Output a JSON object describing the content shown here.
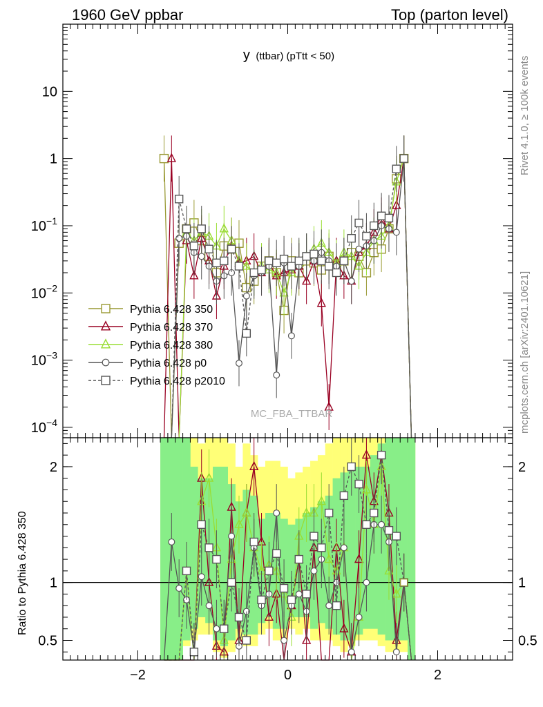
{
  "header": {
    "left": "1960 GeV ppbar",
    "right": "Top (parton level)"
  },
  "side_labels": {
    "rivet": "Rivet 4.1.0, ≥ 100k events",
    "mcplots": "mcplots.cern.ch [arXiv:2401.10621]"
  },
  "watermark": "MC_FBA_TTBAR",
  "chart_data": [
    {
      "id": "main",
      "type": "line",
      "title": "y (ttbar) (pTtt < 50)",
      "title_main": "y",
      "title_sub": "(ttbar)  (pTtt < 50)",
      "xlabel": "",
      "ylabel": "",
      "yscale": "log",
      "xlim": [
        -3.0,
        3.0
      ],
      "ylim": [
        7e-05,
        100
      ],
      "yticks": [
        {
          "value": 10,
          "label": "10"
        },
        {
          "value": 1,
          "label": "1"
        },
        {
          "value": 0.1,
          "base": "10",
          "exp": "−1"
        },
        {
          "value": 0.01,
          "base": "10",
          "exp": "−2"
        },
        {
          "value": 0.001,
          "base": "10",
          "exp": "−3"
        },
        {
          "value": 0.0001,
          "base": "10",
          "exp": "−4"
        }
      ],
      "legend_position": "left-middle",
      "x": [
        -1.65,
        -1.55,
        -1.45,
        -1.35,
        -1.25,
        -1.15,
        -1.05,
        -0.95,
        -0.85,
        -0.75,
        -0.65,
        -0.55,
        -0.45,
        -0.35,
        -0.25,
        -0.15,
        -0.05,
        0.05,
        0.15,
        0.25,
        0.35,
        0.45,
        0.55,
        0.65,
        0.75,
        0.85,
        0.95,
        1.05,
        1.15,
        1.25,
        1.35,
        1.45,
        1.55,
        1.65
      ],
      "series": [
        {
          "name": "Pythia 6.428 350",
          "color": "#999933",
          "marker": "square-open",
          "dash": false,
          "values": [
            1.0,
            null,
            0.055,
            0.09,
            0.11,
            0.06,
            0.035,
            0.02,
            0.05,
            0.045,
            0.055,
            0.012,
            0.015,
            0.025,
            0.03,
            0.02,
            0.0055,
            0.03,
            0.02,
            0.03,
            0.028,
            0.022,
            0.035,
            0.025,
            0.03,
            0.04,
            0.035,
            0.02,
            0.04,
            0.045,
            0.09,
            0.5,
            1.0,
            null
          ]
        },
        {
          "name": "Pythia 6.428 370",
          "color": "#990022",
          "marker": "triangle-open",
          "dash": false,
          "values": [
            null,
            1.0,
            null,
            0.06,
            0.018,
            0.065,
            0.03,
            0.009,
            0.025,
            0.06,
            0.028,
            0.03,
            0.035,
            0.02,
            0.028,
            0.018,
            0.02,
            0.022,
            0.025,
            0.015,
            0.03,
            0.007,
            0.0002,
            0.03,
            0.018,
            0.015,
            0.04,
            0.05,
            0.08,
            0.12,
            0.09,
            0.2,
            1.0,
            null
          ]
        },
        {
          "name": "Pythia 6.428 380",
          "color": "#99dd33",
          "marker": "triangle-open",
          "dash": false,
          "values": [
            null,
            null,
            null,
            0.08,
            0.06,
            0.08,
            0.07,
            0.05,
            0.09,
            0.06,
            0.03,
            0.025,
            0.02,
            0.025,
            0.022,
            0.02,
            0.01,
            0.02,
            0.028,
            0.035,
            0.045,
            0.055,
            0.04,
            0.028,
            0.04,
            0.035,
            0.025,
            0.04,
            0.06,
            0.07,
            0.1,
            0.45,
            1.0,
            null
          ]
        },
        {
          "name": "Pythia 6.428 p0",
          "color": "#555555",
          "marker": "circle-open",
          "dash": false,
          "values": [
            null,
            null,
            0.065,
            0.07,
            0.04,
            0.035,
            0.025,
            0.015,
            0.018,
            0.02,
            0.0009,
            0.009,
            0.018,
            0.02,
            0.025,
            0.0006,
            0.028,
            0.0023,
            0.025,
            0.035,
            0.03,
            0.04,
            0.03,
            0.025,
            0.03,
            0.015,
            0.045,
            0.05,
            0.06,
            0.1,
            0.09,
            0.08,
            1.0,
            null
          ]
        },
        {
          "name": "Pythia 6.428 p2010",
          "color": "#555555",
          "marker": "square-open",
          "dash": true,
          "values": [
            null,
            null,
            0.25,
            0.09,
            0.05,
            0.09,
            0.045,
            0.028,
            0.03,
            0.045,
            0.025,
            0.0025,
            0.02,
            0.022,
            0.03,
            0.028,
            0.032,
            0.025,
            0.03,
            0.035,
            0.038,
            0.03,
            0.025,
            0.02,
            0.03,
            0.065,
            0.11,
            0.07,
            0.1,
            0.14,
            0.13,
            0.7,
            1.0,
            null
          ]
        }
      ]
    },
    {
      "id": "ratio",
      "type": "line",
      "ylabel": "Ratio to Pythia 6.428 350",
      "yscale": "linear",
      "xlim": [
        -3.0,
        3.0
      ],
      "ylim": [
        0.33,
        2.25
      ],
      "yticks": [
        {
          "value": 0.5,
          "label": "0.5"
        },
        {
          "value": 1,
          "label": "1"
        },
        {
          "value": 2,
          "label": "2"
        }
      ],
      "xticks": [
        {
          "value": -2,
          "label": "−2"
        },
        {
          "value": 0,
          "label": "0"
        },
        {
          "value": 2,
          "label": "2"
        }
      ],
      "x": [
        -1.65,
        -1.55,
        -1.45,
        -1.35,
        -1.25,
        -1.15,
        -1.05,
        -0.95,
        -0.85,
        -0.75,
        -0.65,
        -0.55,
        -0.45,
        -0.35,
        -0.25,
        -0.15,
        -0.05,
        0.05,
        0.15,
        0.25,
        0.35,
        0.45,
        0.55,
        0.65,
        0.75,
        0.85,
        0.95,
        1.05,
        1.15,
        1.25,
        1.35,
        1.45,
        1.55,
        1.65
      ],
      "band_yellow": [
        [
          0.33,
          2.25
        ],
        [
          0.33,
          2.25
        ],
        [
          0.33,
          2.25
        ],
        [
          0.45,
          2.25
        ],
        [
          0.5,
          2.25
        ],
        [
          0.55,
          2.2
        ],
        [
          0.55,
          2.25
        ],
        [
          0.4,
          2.25
        ],
        [
          0.35,
          2.25
        ],
        [
          0.4,
          2.2
        ],
        [
          0.5,
          2.0
        ],
        [
          0.45,
          2.2
        ],
        [
          0.45,
          2.1
        ],
        [
          0.55,
          2.0
        ],
        [
          0.6,
          2.05
        ],
        [
          0.5,
          2.05
        ],
        [
          0.5,
          2.0
        ],
        [
          0.6,
          1.9
        ],
        [
          0.55,
          1.95
        ],
        [
          0.6,
          2.0
        ],
        [
          0.5,
          2.05
        ],
        [
          0.5,
          2.1
        ],
        [
          0.5,
          2.2
        ],
        [
          0.45,
          2.25
        ],
        [
          0.4,
          2.25
        ],
        [
          0.45,
          2.25
        ],
        [
          0.5,
          2.25
        ],
        [
          0.5,
          2.25
        ],
        [
          0.5,
          2.25
        ],
        [
          0.45,
          2.25
        ],
        [
          0.4,
          2.25
        ],
        [
          0.4,
          2.25
        ],
        [
          0.4,
          2.25
        ],
        [
          0.33,
          2.25
        ]
      ],
      "band_green": [
        [
          0.33,
          2.25
        ],
        [
          0.33,
          2.25
        ],
        [
          0.33,
          2.25
        ],
        [
          0.5,
          2.25
        ],
        [
          0.6,
          2.0
        ],
        [
          0.7,
          1.9
        ],
        [
          0.65,
          1.9
        ],
        [
          0.5,
          2.0
        ],
        [
          0.45,
          2.0
        ],
        [
          0.5,
          1.85
        ],
        [
          0.6,
          1.7
        ],
        [
          0.55,
          1.8
        ],
        [
          0.55,
          1.75
        ],
        [
          0.65,
          1.55
        ],
        [
          0.7,
          1.6
        ],
        [
          0.6,
          1.6
        ],
        [
          0.6,
          1.55
        ],
        [
          0.7,
          1.5
        ],
        [
          0.7,
          1.55
        ],
        [
          0.7,
          1.6
        ],
        [
          0.6,
          1.65
        ],
        [
          0.65,
          1.7
        ],
        [
          0.6,
          1.75
        ],
        [
          0.55,
          1.9
        ],
        [
          0.5,
          1.95
        ],
        [
          0.5,
          2.0
        ],
        [
          0.55,
          2.0
        ],
        [
          0.6,
          2.0
        ],
        [
          0.6,
          2.1
        ],
        [
          0.55,
          2.2
        ],
        [
          0.5,
          2.25
        ],
        [
          0.5,
          2.25
        ],
        [
          0.5,
          2.25
        ],
        [
          0.33,
          2.25
        ]
      ],
      "series": [
        {
          "name": "Pythia 6.428 370",
          "values": [
            null,
            null,
            null,
            0.3,
            0.2,
            1.9,
            1.0,
            0.45,
            0.4,
            1.65,
            0.5,
            1.6,
            2.0,
            1.35,
            0.7,
            0.9,
            0.3,
            0.8,
            1.2,
            0.5,
            1.3,
            0.3,
            0.3,
            1.3,
            0.6,
            0.4,
            1.2,
            2.1,
            1.7,
            2.1,
            1.6,
            0.5,
            1.0,
            null
          ]
        },
        {
          "name": "Pythia 6.428 380",
          "values": [
            null,
            null,
            null,
            1.1,
            0.3,
            1.7,
            1.9,
            1.3,
            0.5,
            1.2,
            1.5,
            1.6,
            1.3,
            1.1,
            1.15,
            1.1,
            0.9,
            0.7,
            1.4,
            1.6,
            1.6,
            1.7,
            1.2,
            1.1,
            1.3,
            0.3,
            0.7,
            1.8,
            1.5,
            2.0,
            1.1,
            0.9,
            1.0,
            null
          ]
        },
        {
          "name": "Pythia 6.428 p0",
          "values": [
            null,
            1.35,
            0.95,
            0.85,
            0.4,
            1.05,
            0.8,
            0.6,
            0.6,
            1.4,
            0.45,
            0.75,
            1.3,
            0.8,
            0.9,
            1.6,
            0.5,
            0.8,
            0.9,
            0.75,
            1.1,
            1.2,
            0.8,
            1.0,
            1.3,
            0.4,
            0.7,
            1.0,
            1.5,
            1.5,
            1.35,
            0.4,
            1.0,
            null
          ]
        },
        {
          "name": "Pythia 6.428 p2010",
          "values": [
            null,
            null,
            null,
            1.1,
            0.4,
            1.5,
            1.3,
            1.2,
            0.6,
            1.0,
            0.7,
            0.5,
            1.35,
            0.85,
            1.1,
            1.25,
            0.95,
            0.85,
            1.2,
            0.9,
            1.4,
            1.3,
            1.6,
            0.8,
            1.75,
            2.0,
            1.85,
            1.5,
            1.6,
            2.1,
            1.45,
            1.4,
            1.0,
            null
          ]
        }
      ]
    }
  ]
}
